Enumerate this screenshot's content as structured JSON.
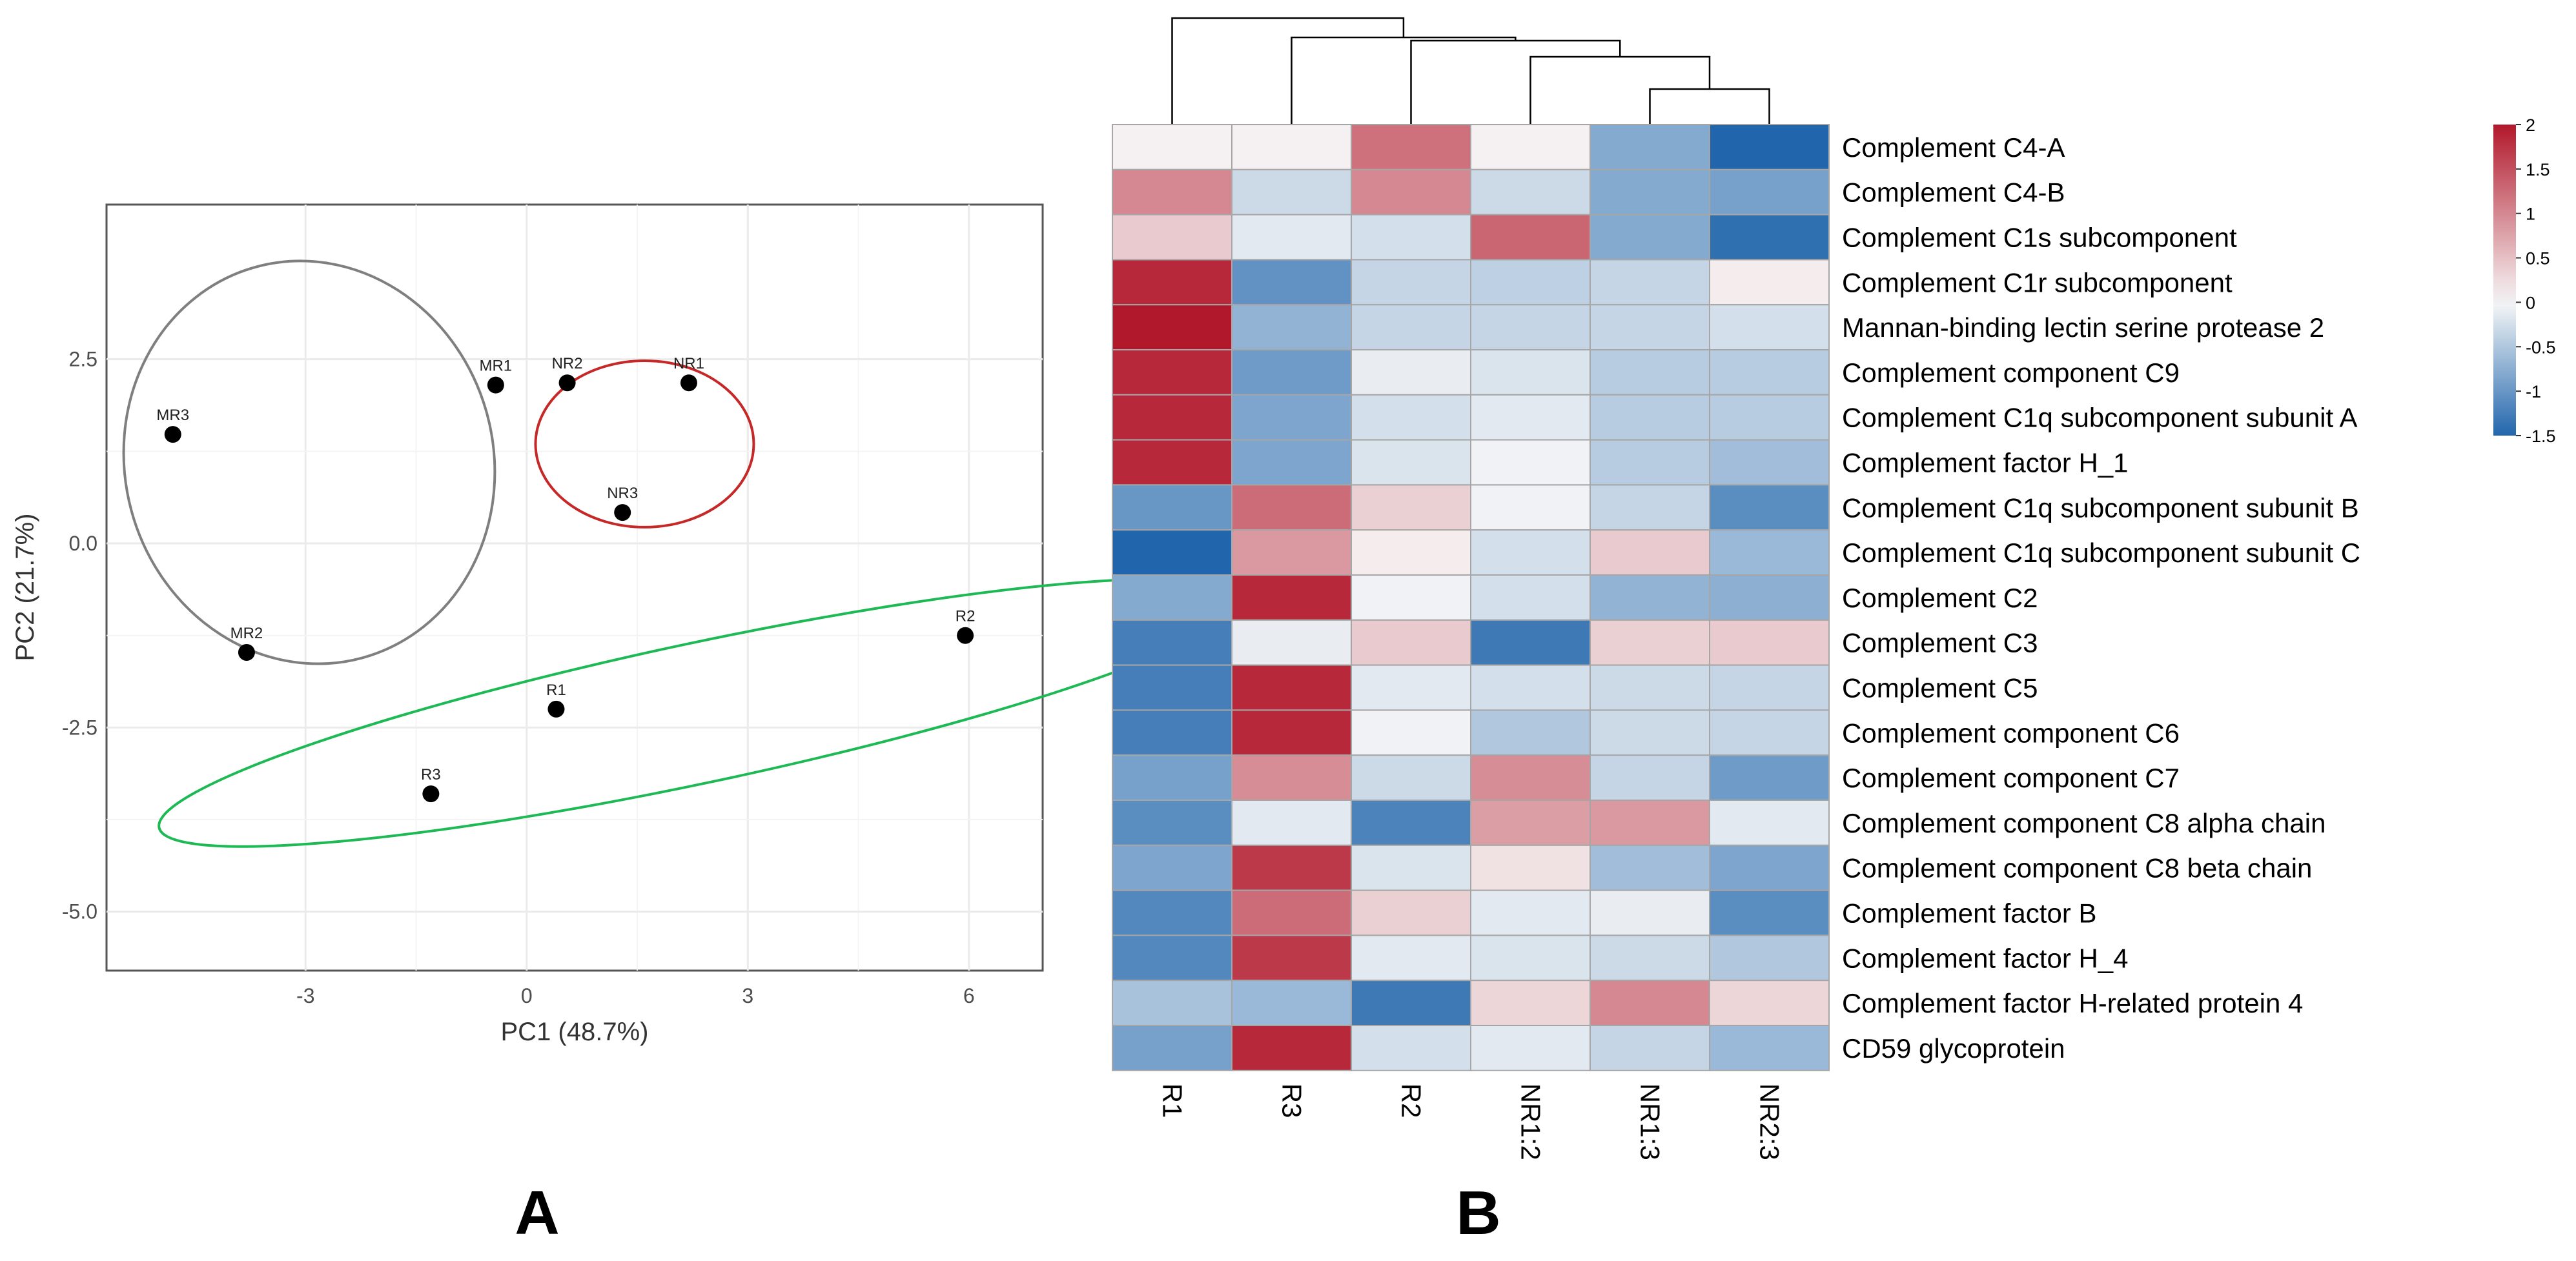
{
  "panel_labels": {
    "a": "A",
    "b": "B"
  },
  "chart_data": [
    {
      "type": "scatter",
      "panel": "A",
      "title": "",
      "xlabel": "PC1 (48.7%)",
      "ylabel": "PC2 (21.7%)",
      "xlim": [
        -5.7,
        7.0
      ],
      "ylim": [
        -5.8,
        4.6
      ],
      "xticks": [
        -3,
        0,
        3,
        6
      ],
      "xtick_labels": [
        "-3",
        "0",
        "3",
        "6"
      ],
      "yticks": [
        -5.0,
        -2.5,
        0.0,
        2.5
      ],
      "ytick_labels": [
        "-5.0",
        "-2.5",
        "0.0",
        "2.5"
      ],
      "grid": true,
      "points": [
        {
          "label": "MR1",
          "x": -0.42,
          "y": 2.15
        },
        {
          "label": "NR2",
          "x": 0.55,
          "y": 2.18
        },
        {
          "label": "NR1",
          "x": 2.2,
          "y": 2.18
        },
        {
          "label": "MR3",
          "x": -4.8,
          "y": 1.48
        },
        {
          "label": "NR3",
          "x": 1.3,
          "y": 0.42
        },
        {
          "label": "MR2",
          "x": -3.8,
          "y": -1.48
        },
        {
          "label": "R2",
          "x": 5.95,
          "y": -1.25
        },
        {
          "label": "R1",
          "x": 0.4,
          "y": -2.25
        },
        {
          "label": "R3",
          "x": -1.3,
          "y": -3.4
        }
      ],
      "ellipses": [
        {
          "group": "MR",
          "color": "#7f7f7f",
          "cx": -2.95,
          "cy": 1.1,
          "rx": 2.5,
          "ry": 2.75,
          "angle_deg": -15
        },
        {
          "group": "NR",
          "color": "#c62828",
          "cx": 1.6,
          "cy": 1.35,
          "rx": 1.48,
          "ry": 1.13,
          "angle_deg": 0
        },
        {
          "group": "R",
          "color": "#1db954",
          "cx": 2.35,
          "cy": -2.3,
          "rx": 7.5,
          "ry": 0.95,
          "angle_deg": -12
        }
      ]
    },
    {
      "type": "heatmap",
      "panel": "B",
      "columns": [
        "R1",
        "R3",
        "R2",
        "NR1:2",
        "NR1:3",
        "NR2:3"
      ],
      "rows": [
        "Complement C4-A",
        "Complement C4-B",
        "Complement C1s subcomponent",
        "Complement C1r subcomponent",
        "Mannan-binding lectin serine protease 2",
        "Complement component C9",
        "Complement C1q subcomponent subunit A",
        "Complement factor H_1",
        "Complement C1q subcomponent subunit B",
        "Complement C1q subcomponent subunit C",
        "Complement C2",
        "Complement C3",
        "Complement C5",
        "Complement component C6",
        "Complement component C7",
        "Complement component C8 alpha chain",
        "Complement component C8 beta chain",
        "Complement factor B",
        "Complement factor H_4",
        "Complement factor H-related protein 4",
        "CD59 glycoprotein"
      ],
      "values": [
        [
          0.05,
          0.05,
          1.2,
          0.05,
          -0.8,
          -1.5
        ],
        [
          1.0,
          -0.3,
          1.0,
          -0.3,
          -0.8,
          -0.9
        ],
        [
          0.4,
          -0.15,
          -0.25,
          1.3,
          -0.8,
          -1.4
        ],
        [
          1.85,
          -1.05,
          -0.35,
          -0.4,
          -0.35,
          0.1
        ],
        [
          2.0,
          -0.7,
          -0.35,
          -0.35,
          -0.35,
          -0.25
        ],
        [
          1.85,
          -0.95,
          -0.1,
          -0.2,
          -0.45,
          -0.45
        ],
        [
          1.85,
          -0.85,
          -0.25,
          -0.15,
          -0.45,
          -0.45
        ],
        [
          1.85,
          -0.85,
          -0.2,
          -0.05,
          -0.45,
          -0.6
        ],
        [
          -1.0,
          1.25,
          0.35,
          -0.05,
          -0.35,
          -1.1
        ],
        [
          -1.5,
          0.85,
          0.1,
          -0.25,
          0.4,
          -0.65
        ],
        [
          -0.8,
          1.85,
          -0.05,
          -0.25,
          -0.7,
          -0.75
        ],
        [
          -1.25,
          -0.1,
          0.4,
          -1.3,
          0.35,
          0.4
        ],
        [
          -1.25,
          1.85,
          -0.15,
          -0.25,
          -0.3,
          -0.35
        ],
        [
          -1.25,
          1.85,
          -0.05,
          -0.5,
          -0.3,
          -0.35
        ],
        [
          -0.9,
          0.95,
          -0.3,
          0.95,
          -0.35,
          -0.95
        ],
        [
          -1.1,
          -0.15,
          -1.2,
          0.8,
          0.85,
          -0.15
        ],
        [
          -0.85,
          1.7,
          -0.2,
          0.2,
          -0.6,
          -0.85
        ],
        [
          -1.15,
          1.25,
          0.35,
          -0.15,
          -0.1,
          -1.1
        ],
        [
          -1.15,
          1.7,
          -0.15,
          -0.2,
          -0.3,
          -0.5
        ],
        [
          -0.55,
          -0.65,
          -1.3,
          0.3,
          1.0,
          0.3
        ],
        [
          -0.9,
          1.85,
          -0.25,
          -0.15,
          -0.35,
          -0.65
        ]
      ],
      "color_scale": {
        "min": -1.5,
        "max": 2,
        "low_color": "#2166ac",
        "mid_color": "#f7f7f7",
        "high_color": "#b2182b",
        "ticks": [
          2,
          1.5,
          1,
          0.5,
          0,
          -0.5,
          -1,
          -1.5
        ],
        "tick_labels": [
          "2",
          "1.5",
          "1",
          "0.5",
          "0",
          "-0.5",
          "-1",
          "-1.5"
        ]
      },
      "dendrogram": "((R1,(R3,(R2,(NR1:2,(NR1:3,NR2:3))))))"
    }
  ]
}
